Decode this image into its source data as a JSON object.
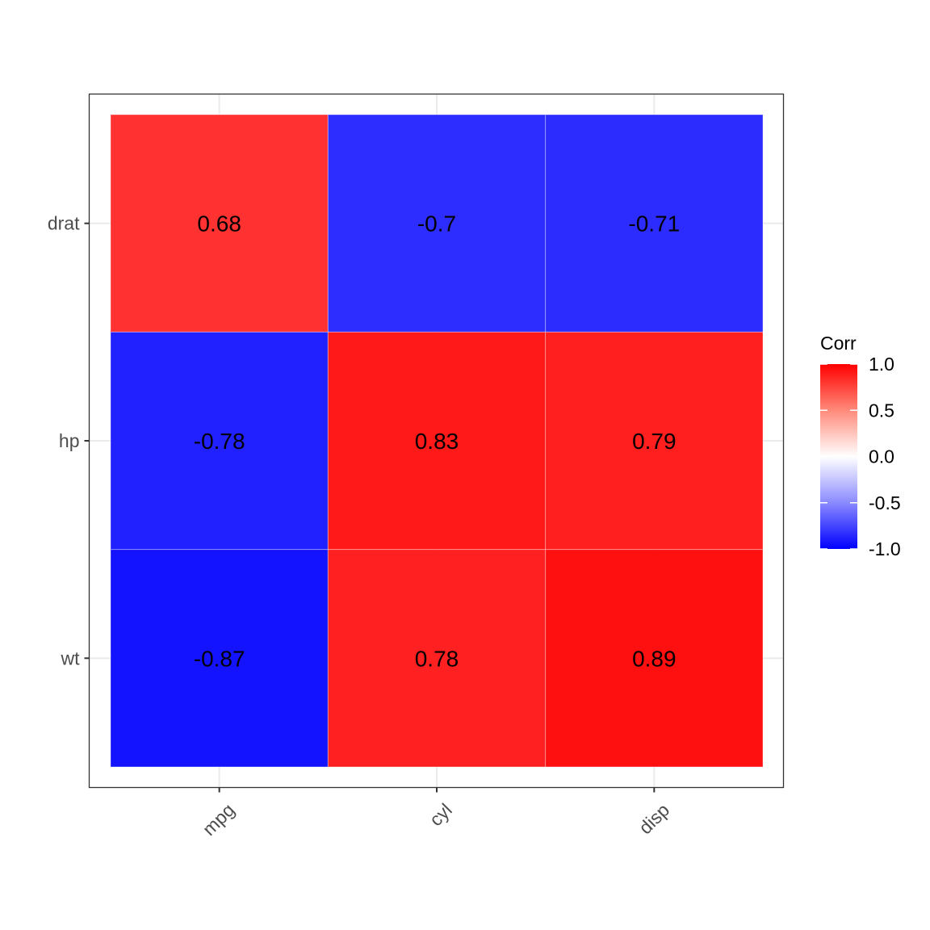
{
  "chart_data": {
    "type": "heatmap",
    "x_categories": [
      "mpg",
      "cyl",
      "disp"
    ],
    "y_categories": [
      "drat",
      "hp",
      "wt"
    ],
    "values": [
      [
        0.68,
        -0.7,
        -0.71
      ],
      [
        -0.78,
        0.83,
        0.79
      ],
      [
        -0.87,
        0.78,
        0.89
      ]
    ],
    "value_labels": [
      [
        "0.68",
        "-0.7",
        "-0.71"
      ],
      [
        "-0.78",
        "0.83",
        "0.79"
      ],
      [
        "-0.87",
        "0.78",
        "0.89"
      ]
    ],
    "legend": {
      "title": "Corr",
      "range": [
        -1,
        1
      ],
      "ticks": [
        1.0,
        0.5,
        0.0,
        -0.5,
        -1.0
      ],
      "tick_labels": [
        "1.0",
        "0.5",
        "0.0",
        "-0.5",
        "-1.0"
      ],
      "placement": "right"
    },
    "colors": {
      "low": "#0000ff",
      "mid": "#ffffff",
      "high": "#ff0000"
    },
    "grid": true,
    "x_tick_rotation_deg": 45
  }
}
